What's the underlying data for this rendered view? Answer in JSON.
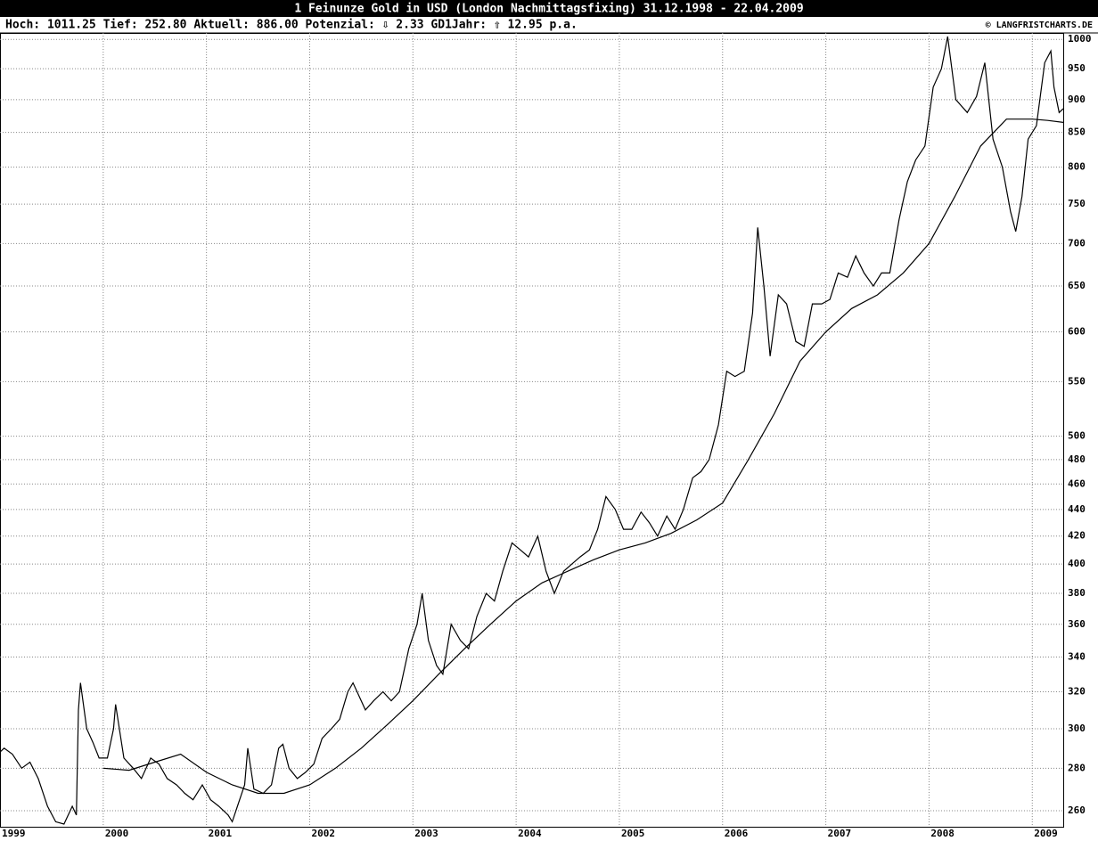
{
  "chart_data": {
    "type": "line",
    "title": "1 Feinunze Gold in USD (London Nachmittagsfixing) 31.12.1998 - 22.04.2009",
    "subtitle": "Hoch: 1011.25  Tief: 252.80  Aktuell: 886.00  Potenzial: ⇩ 2.33  GD1Jahr: ⇧ 12.95 p.a.",
    "source": "© LANGFRISTCHARTS.DE",
    "log_y": true,
    "grid": true,
    "xlim": [
      1999,
      2009.3
    ],
    "xticks": [
      1999,
      2000,
      2001,
      2002,
      2003,
      2004,
      2005,
      2006,
      2007,
      2008,
      2009
    ],
    "ylim": [
      252.8,
      1011.25
    ],
    "yticks": [
      260,
      280,
      300,
      320,
      340,
      360,
      380,
      400,
      420,
      440,
      460,
      480,
      500,
      550,
      600,
      650,
      700,
      750,
      800,
      850,
      900,
      950,
      1000
    ],
    "series": [
      {
        "color": "#000000",
        "x": [
          1999.0,
          1999.04,
          1999.12,
          1999.21,
          1999.29,
          1999.37,
          1999.46,
          1999.54,
          1999.62,
          1999.7,
          1999.74,
          1999.76,
          1999.78,
          1999.84,
          1999.9,
          1999.96,
          2000.04,
          2000.1,
          2000.12,
          2000.2,
          2000.29,
          2000.37,
          2000.46,
          2000.54,
          2000.62,
          2000.71,
          2000.79,
          2000.87,
          2000.96,
          2001.04,
          2001.12,
          2001.21,
          2001.25,
          2001.3,
          2001.37,
          2001.4,
          2001.46,
          2001.55,
          2001.63,
          2001.7,
          2001.74,
          2001.8,
          2001.88,
          2001.96,
          2002.04,
          2002.12,
          2002.21,
          2002.29,
          2002.37,
          2002.42,
          2002.54,
          2002.62,
          2002.71,
          2002.79,
          2002.87,
          2002.96,
          2003.04,
          2003.09,
          2003.15,
          2003.23,
          2003.29,
          2003.37,
          2003.46,
          2003.54,
          2003.62,
          2003.71,
          2003.79,
          2003.87,
          2003.96,
          2004.04,
          2004.12,
          2004.21,
          2004.29,
          2004.37,
          2004.46,
          2004.54,
          2004.62,
          2004.71,
          2004.79,
          2004.87,
          2004.96,
          2005.04,
          2005.12,
          2005.21,
          2005.29,
          2005.37,
          2005.46,
          2005.54,
          2005.62,
          2005.71,
          2005.79,
          2005.87,
          2005.96,
          2006.04,
          2006.12,
          2006.21,
          2006.29,
          2006.34,
          2006.4,
          2006.46,
          2006.54,
          2006.62,
          2006.71,
          2006.79,
          2006.87,
          2006.96,
          2007.04,
          2007.12,
          2007.21,
          2007.29,
          2007.37,
          2007.46,
          2007.54,
          2007.62,
          2007.71,
          2007.79,
          2007.87,
          2007.96,
          2008.04,
          2008.12,
          2008.18,
          2008.26,
          2008.37,
          2008.46,
          2008.54,
          2008.62,
          2008.71,
          2008.79,
          2008.84,
          2008.9,
          2008.96,
          2009.04,
          2009.12,
          2009.18,
          2009.21,
          2009.26,
          2009.3
        ],
        "values": [
          288,
          290,
          287,
          280,
          283,
          275,
          262,
          255,
          254,
          262,
          258,
          310,
          325,
          300,
          293,
          285,
          285,
          300,
          313,
          285,
          280,
          275,
          285,
          282,
          275,
          272,
          268,
          265,
          272,
          265,
          262,
          258,
          255,
          262,
          272,
          290,
          270,
          268,
          272,
          290,
          292,
          280,
          275,
          278,
          282,
          295,
          300,
          305,
          320,
          325,
          310,
          315,
          320,
          315,
          320,
          345,
          360,
          380,
          350,
          335,
          330,
          360,
          350,
          345,
          365,
          380,
          375,
          395,
          415,
          410,
          405,
          420,
          395,
          380,
          395,
          400,
          405,
          410,
          425,
          450,
          440,
          425,
          425,
          438,
          430,
          420,
          435,
          425,
          440,
          465,
          470,
          480,
          510,
          560,
          555,
          560,
          620,
          720,
          650,
          575,
          640,
          630,
          590,
          585,
          630,
          630,
          635,
          665,
          660,
          685,
          665,
          650,
          665,
          665,
          730,
          780,
          810,
          830,
          920,
          950,
          1005,
          900,
          880,
          905,
          960,
          840,
          800,
          740,
          715,
          760,
          840,
          860,
          960,
          980,
          920,
          880,
          886
        ]
      },
      {
        "color": "#000000",
        "x": [
          2000.0,
          2000.25,
          2000.5,
          2000.75,
          2001.0,
          2001.25,
          2001.5,
          2001.75,
          2002.0,
          2002.25,
          2002.5,
          2002.75,
          2003.0,
          2003.25,
          2003.5,
          2003.75,
          2004.0,
          2004.25,
          2004.5,
          2004.75,
          2005.0,
          2005.25,
          2005.5,
          2005.75,
          2006.0,
          2006.25,
          2006.5,
          2006.75,
          2007.0,
          2007.25,
          2007.5,
          2007.75,
          2008.0,
          2008.25,
          2008.5,
          2008.75,
          2009.0,
          2009.15,
          2009.3
        ],
        "values": [
          280,
          279,
          283,
          287,
          278,
          272,
          268,
          268,
          272,
          280,
          290,
          302,
          315,
          330,
          345,
          360,
          375,
          387,
          395,
          403,
          410,
          415,
          422,
          432,
          445,
          480,
          520,
          570,
          600,
          625,
          640,
          665,
          700,
          760,
          830,
          870,
          870,
          868,
          865
        ]
      }
    ]
  }
}
